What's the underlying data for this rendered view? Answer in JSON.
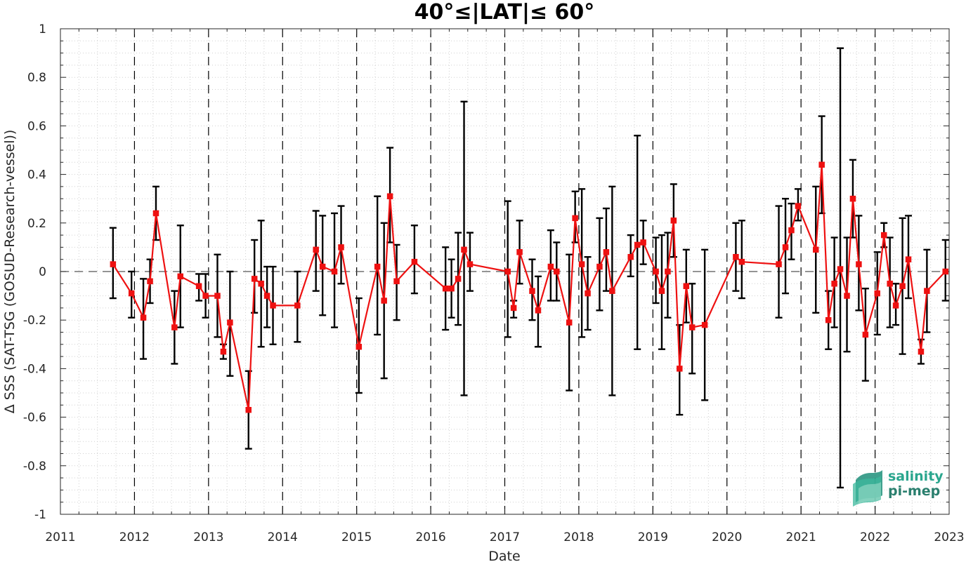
{
  "chart_data": {
    "type": "line",
    "title": "40°≤|LAT|≤ 60°",
    "xlabel": "Date",
    "ylabel": "Δ SSS (SAT-TSG (GOSUD-Research-vessel))",
    "xlim": [
      2011,
      2023
    ],
    "ylim": [
      -1,
      1
    ],
    "x_ticks": [
      "2011",
      "2012",
      "2013",
      "2014",
      "2015",
      "2016",
      "2017",
      "2018",
      "2019",
      "2020",
      "2021",
      "2022",
      "2023"
    ],
    "y_ticks": [
      "1",
      "0.8",
      "0.6",
      "0.4",
      "0.2",
      "0",
      "-0.2",
      "-0.4",
      "-0.6",
      "-0.8",
      "-1"
    ],
    "grid": true,
    "zero_line": true,
    "year_dividers": true,
    "colors": {
      "series": "#ee1111",
      "error_bars": "#000000",
      "logo": "#2aa68e"
    },
    "series": [
      {
        "x": [
          2011.71,
          2011.96,
          2012.12,
          2012.21,
          2012.29,
          2012.54,
          2012.62,
          2012.87,
          2012.96,
          2013.12,
          2013.2,
          2013.29,
          2013.54,
          2013.62,
          2013.71,
          2013.79,
          2013.87,
          2014.2,
          2014.45,
          2014.54,
          2014.7,
          2014.79,
          2015.03,
          2015.28,
          2015.37,
          2015.45,
          2015.54,
          2015.78,
          2016.2,
          2016.28,
          2016.37,
          2016.45,
          2016.53,
          2017.04,
          2017.12,
          2017.2,
          2017.37,
          2017.45,
          2017.62,
          2017.7,
          2017.87,
          2017.95,
          2018.04,
          2018.12,
          2018.28,
          2018.37,
          2018.45,
          2018.7,
          2018.79,
          2018.87,
          2019.04,
          2019.12,
          2019.2,
          2019.28,
          2019.36,
          2019.45,
          2019.53,
          2019.7,
          2020.12,
          2020.2,
          2020.7,
          2020.79,
          2020.87,
          2020.96,
          2021.2,
          2021.28,
          2021.37,
          2021.45,
          2021.53,
          2021.62,
          2021.7,
          2021.78,
          2021.87,
          2022.03,
          2022.12,
          2022.2,
          2022.28,
          2022.37,
          2022.45,
          2022.62,
          2022.7,
          2022.95
        ],
        "y": [
          0.03,
          -0.09,
          -0.19,
          -0.04,
          0.24,
          -0.23,
          -0.02,
          -0.06,
          -0.1,
          -0.1,
          -0.33,
          -0.21,
          -0.57,
          -0.03,
          -0.05,
          -0.1,
          -0.14,
          -0.14,
          0.09,
          0.02,
          0.0,
          0.1,
          -0.31,
          0.02,
          -0.12,
          0.31,
          -0.04,
          0.04,
          -0.07,
          -0.07,
          -0.03,
          0.09,
          0.03,
          0.0,
          -0.15,
          0.08,
          -0.08,
          -0.16,
          0.02,
          0.0,
          -0.21,
          0.22,
          0.03,
          -0.09,
          0.02,
          0.08,
          -0.08,
          0.06,
          0.11,
          0.12,
          0.0,
          -0.08,
          0.0,
          0.21,
          -0.4,
          -0.06,
          -0.23,
          -0.22,
          0.06,
          0.04,
          0.03,
          0.1,
          0.17,
          0.27,
          0.09,
          0.44,
          -0.2,
          -0.05,
          0.01,
          -0.1,
          0.3,
          0.03,
          -0.26,
          -0.09,
          0.15,
          -0.05,
          -0.14,
          -0.06,
          0.05,
          -0.33,
          -0.08,
          0.0
        ],
        "err_low": [
          -0.11,
          -0.19,
          -0.36,
          -0.13,
          0.13,
          -0.38,
          -0.23,
          -0.12,
          -0.19,
          -0.27,
          -0.36,
          -0.43,
          -0.73,
          -0.17,
          -0.31,
          -0.23,
          -0.3,
          -0.29,
          -0.08,
          -0.18,
          -0.23,
          -0.05,
          -0.5,
          -0.26,
          -0.44,
          0.12,
          -0.2,
          -0.09,
          -0.24,
          -0.19,
          -0.22,
          -0.51,
          -0.08,
          -0.27,
          -0.19,
          -0.05,
          -0.2,
          -0.31,
          -0.12,
          -0.12,
          -0.49,
          0.12,
          -0.27,
          -0.24,
          -0.16,
          -0.08,
          -0.51,
          -0.02,
          -0.32,
          0.03,
          -0.13,
          -0.32,
          -0.19,
          0.06,
          -0.59,
          -0.21,
          -0.42,
          -0.53,
          -0.08,
          -0.11,
          -0.19,
          -0.09,
          0.05,
          0.21,
          -0.17,
          0.24,
          -0.32,
          -0.23,
          -0.89,
          -0.33,
          0.14,
          -0.16,
          -0.45,
          -0.26,
          0.1,
          -0.23,
          -0.22,
          -0.34,
          -0.11,
          -0.38,
          -0.25,
          -0.12
        ],
        "err_high": [
          0.18,
          0.0,
          -0.03,
          0.05,
          0.35,
          -0.08,
          0.19,
          -0.01,
          -0.01,
          0.07,
          -0.3,
          0.0,
          -0.41,
          0.13,
          0.21,
          0.02,
          0.02,
          0.0,
          0.25,
          0.23,
          0.24,
          0.27,
          -0.11,
          0.31,
          0.2,
          0.51,
          0.11,
          0.19,
          0.1,
          0.05,
          0.16,
          0.7,
          0.16,
          0.29,
          -0.12,
          0.21,
          0.05,
          -0.02,
          0.17,
          0.12,
          0.07,
          0.33,
          0.34,
          0.06,
          0.22,
          0.26,
          0.35,
          0.15,
          0.56,
          0.21,
          0.14,
          0.15,
          0.16,
          0.36,
          -0.22,
          0.09,
          -0.05,
          0.09,
          0.2,
          0.21,
          0.27,
          0.3,
          0.28,
          0.34,
          0.35,
          0.64,
          -0.08,
          0.14,
          0.92,
          0.14,
          0.46,
          0.23,
          -0.07,
          0.08,
          0.2,
          0.14,
          -0.05,
          0.22,
          0.23,
          -0.28,
          0.09,
          0.13
        ]
      }
    ]
  },
  "logo": {
    "line1": "salinity",
    "line2": "pi-mep",
    "icon": "salinity-wave-logo-icon"
  }
}
